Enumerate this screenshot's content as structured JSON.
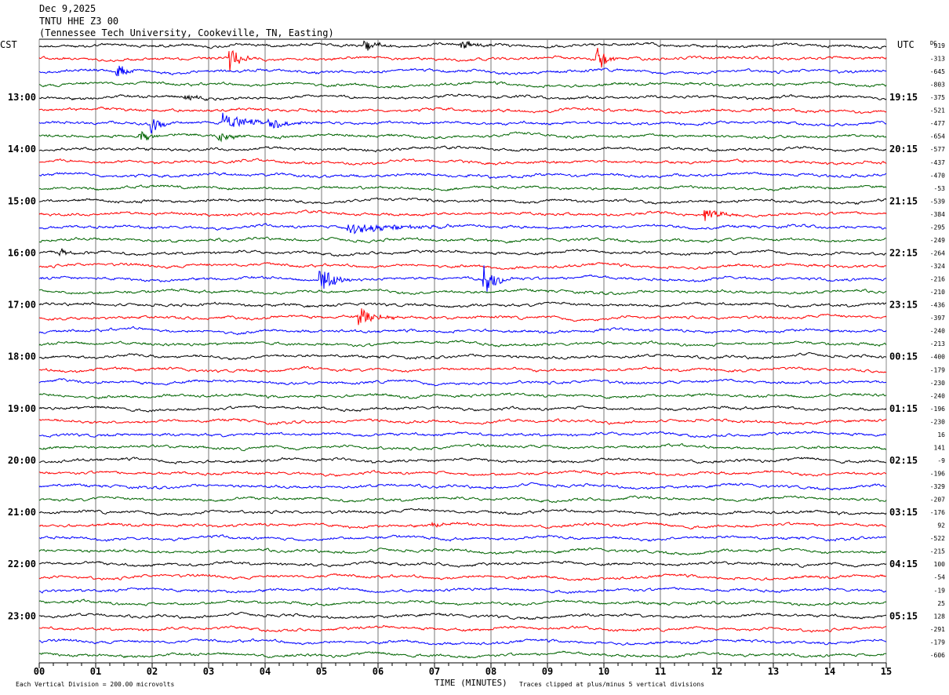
{
  "header": {
    "date": "Dec 9,2025",
    "station": "TNTU HHE Z3 00",
    "location": "(Tennessee Tech University, Cookeville, TN, Easting)"
  },
  "chart_data": {
    "type": "line",
    "title": "TNTU HHE Z3 00 helicorder",
    "left_axis_label": "CST",
    "right_axis_label": "UTC",
    "dc_label": "DC",
    "xlabel": "TIME (MINUTES)",
    "x_ticks": [
      "00",
      "01",
      "02",
      "03",
      "04",
      "05",
      "06",
      "07",
      "08",
      "09",
      "10",
      "11",
      "12",
      "13",
      "14",
      "15"
    ],
    "xlim": [
      0,
      15
    ],
    "minutes_per_line": 15,
    "trace_colors": [
      "#000000",
      "#ff0000",
      "#0000ff",
      "#006400"
    ],
    "left_labels": [
      {
        "row": 4,
        "text": "13:00"
      },
      {
        "row": 8,
        "text": "14:00"
      },
      {
        "row": 12,
        "text": "15:00"
      },
      {
        "row": 16,
        "text": "16:00"
      },
      {
        "row": 20,
        "text": "17:00"
      },
      {
        "row": 24,
        "text": "18:00"
      },
      {
        "row": 28,
        "text": "19:00"
      },
      {
        "row": 32,
        "text": "20:00"
      },
      {
        "row": 36,
        "text": "21:00"
      },
      {
        "row": 40,
        "text": "22:00"
      },
      {
        "row": 44,
        "text": "23:00"
      }
    ],
    "right_labels": [
      {
        "row": 4,
        "text": "19:15"
      },
      {
        "row": 8,
        "text": "20:15"
      },
      {
        "row": 12,
        "text": "21:15"
      },
      {
        "row": 16,
        "text": "22:15"
      },
      {
        "row": 20,
        "text": "23:15"
      },
      {
        "row": 24,
        "text": "00:15"
      },
      {
        "row": 28,
        "text": "01:15"
      },
      {
        "row": 32,
        "text": "02:15"
      },
      {
        "row": 36,
        "text": "03:15"
      },
      {
        "row": 40,
        "text": "04:15"
      },
      {
        "row": 44,
        "text": "05:15"
      }
    ],
    "dc_offsets": [
      "919",
      "-313",
      "-645",
      "-803",
      "-375",
      "-521",
      "-477",
      "-654",
      "-577",
      "-437",
      "-470",
      "-53",
      "-539",
      "-384",
      "-295",
      "-249",
      "-264",
      "-324",
      "-216",
      "-210",
      "-436",
      "-397",
      "-240",
      "-213",
      "-400",
      "-179",
      "-230",
      "-240",
      "-196",
      "-230",
      "16",
      "141",
      "-9",
      "-196",
      "-329",
      "-207",
      "-176",
      "92",
      "-522",
      "-215",
      "100",
      "-54",
      "-19",
      "25",
      "128",
      "-291",
      "-179",
      "-606"
    ],
    "events": [
      [
        0,
        5.8,
        1.2,
        0.15
      ],
      [
        0,
        7.5,
        0.8,
        0.2
      ],
      [
        1,
        3.4,
        2.5,
        0.15
      ],
      [
        1,
        9.9,
        3,
        0.12
      ],
      [
        2,
        1.4,
        1.6,
        0.15
      ],
      [
        4,
        2.6,
        0.6,
        0.2
      ],
      [
        6,
        2.0,
        1.8,
        0.12
      ],
      [
        6,
        3.3,
        1.8,
        0.3
      ],
      [
        6,
        4.1,
        0.8,
        0.4
      ],
      [
        7,
        1.8,
        0.8,
        0.2
      ],
      [
        7,
        3.2,
        1,
        0.2
      ],
      [
        14,
        5.5,
        1.0,
        0.8
      ],
      [
        13,
        11.8,
        1.2,
        0.25
      ],
      [
        16,
        0.4,
        0.6,
        0.15
      ],
      [
        18,
        5.0,
        2.6,
        0.2
      ],
      [
        18,
        7.9,
        2.8,
        0.18
      ],
      [
        21,
        5.7,
        1.6,
        0.25
      ],
      [
        37,
        7.0,
        0.6,
        0.1
      ]
    ],
    "footer_left": "Each Vertical Division =  200.00 microvolts",
    "footer_right": "Traces clipped at plus/minus 5 vertical divisions"
  }
}
